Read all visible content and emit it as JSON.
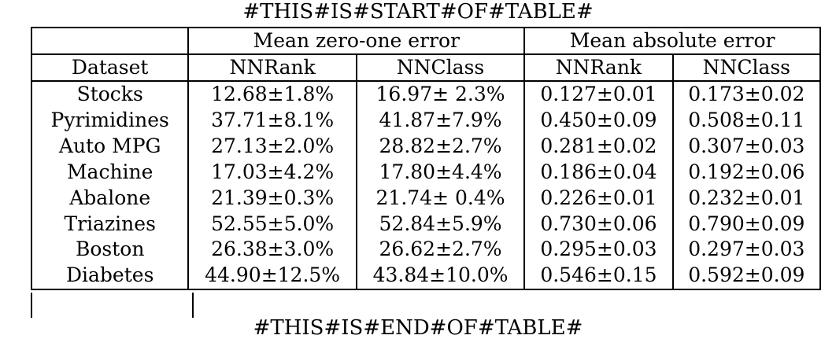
{
  "markers": {
    "start": "#THIS#IS#START#OF#TABLE#",
    "end": "#THIS#IS#END#OF#TABLE#"
  },
  "table": {
    "group_headers": [
      "",
      "Mean zero-one error",
      "Mean absolute error"
    ],
    "column_headers": [
      "Dataset",
      "NNRank",
      "NNClass",
      "NNRank",
      "NNClass"
    ],
    "rows": [
      [
        "Stocks",
        "12.68±1.8%",
        "16.97± 2.3%",
        "0.127±0.01",
        "0.173±0.02"
      ],
      [
        "Pyrimidines",
        "37.71±8.1%",
        "41.87±7.9%",
        "0.450±0.09",
        "0.508±0.11"
      ],
      [
        "Auto MPG",
        "27.13±2.0%",
        "28.82±2.7%",
        "0.281±0.02",
        "0.307±0.03"
      ],
      [
        "Machine",
        "17.03±4.2%",
        "17.80±4.4%",
        "0.186±0.04",
        "0.192±0.06"
      ],
      [
        "Abalone",
        "21.39±0.3%",
        "21.74± 0.4%",
        "0.226±0.01",
        "0.232±0.01"
      ],
      [
        "Triazines",
        "52.55±5.0%",
        "52.84±5.9%",
        "0.730±0.06",
        "0.790±0.09"
      ],
      [
        "Boston",
        "26.38±3.0%",
        "26.62±2.7%",
        "0.295±0.03",
        "0.297±0.03"
      ],
      [
        "Diabetes",
        "44.90±12.5%",
        "43.84±10.0%",
        "0.546±0.15",
        "0.592±0.09"
      ]
    ]
  }
}
